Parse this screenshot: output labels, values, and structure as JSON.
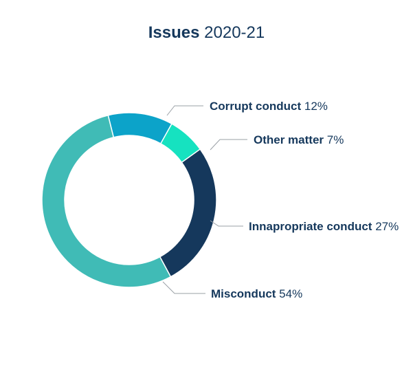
{
  "title": {
    "bold": "Issues",
    "year": "2020-21"
  },
  "chart_data": {
    "type": "pie",
    "variant": "donut",
    "title": "Issues 2020-21",
    "slices": [
      {
        "label": "Corrupt conduct",
        "value": 12,
        "value_label": "12%",
        "color": "#0ca3c9"
      },
      {
        "label": "Other matter",
        "value": 7,
        "value_label": "7%",
        "color": "#16e2c0"
      },
      {
        "label": "Innapropriate conduct",
        "value": 27,
        "value_label": "27%",
        "color": "#15385c"
      },
      {
        "label": "Misconduct",
        "value": 54,
        "value_label": "54%",
        "color": "#40bbb6"
      }
    ]
  }
}
